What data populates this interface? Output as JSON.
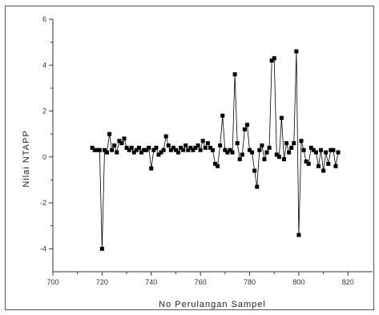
{
  "chart_data": {
    "type": "line",
    "title": "",
    "xlabel": "No Perulangan Sampel",
    "ylabel": "Nilai NTAPP",
    "xlim": [
      700,
      830
    ],
    "ylim": [
      -5,
      6
    ],
    "xticks": [
      700,
      720,
      740,
      760,
      780,
      800,
      820
    ],
    "yticks": [
      -4,
      -2,
      0,
      2,
      4,
      6
    ],
    "xtick_labels": [
      "700",
      "720",
      "740",
      "760",
      "780",
      "800",
      "820"
    ],
    "ytick_labels": [
      "-4",
      "-2",
      "0",
      "2",
      "4",
      "6"
    ],
    "grid": false,
    "legend": false,
    "colors": {
      "line": "#000000",
      "marker": "#000000",
      "axis": "#333333"
    },
    "series": [
      {
        "x": [
          716,
          717,
          718,
          719,
          720,
          721,
          722,
          723,
          724,
          725,
          726,
          727,
          728,
          729,
          730,
          731,
          732,
          733,
          734,
          735,
          736,
          737,
          738,
          739,
          740,
          741,
          742,
          743,
          744,
          745,
          746,
          747,
          748,
          749,
          750,
          751,
          752,
          753,
          754,
          755,
          756,
          757,
          758,
          759,
          760,
          761,
          762,
          763,
          764,
          765,
          766,
          767,
          768,
          769,
          770,
          771,
          772,
          773,
          774,
          775,
          776,
          777,
          778,
          779,
          780,
          781,
          782,
          783,
          784,
          785,
          786,
          787,
          788,
          789,
          790,
          791,
          792,
          793,
          794,
          795,
          796,
          797,
          798,
          799,
          800,
          801,
          802,
          803,
          804,
          805,
          806,
          807,
          808,
          809,
          810,
          811,
          812,
          813,
          814,
          815,
          816
        ],
        "values": [
          0.4,
          0.3,
          0.3,
          0.3,
          -4.0,
          0.3,
          0.2,
          1.0,
          0.3,
          0.5,
          0.2,
          0.7,
          0.6,
          0.8,
          0.4,
          0.3,
          0.4,
          0.2,
          0.3,
          0.4,
          0.2,
          0.3,
          0.3,
          0.4,
          -0.5,
          0.3,
          0.4,
          0.1,
          0.2,
          0.3,
          0.9,
          0.5,
          0.3,
          0.4,
          0.3,
          0.2,
          0.4,
          0.3,
          0.5,
          0.3,
          0.4,
          0.3,
          0.4,
          0.5,
          0.3,
          0.7,
          0.4,
          0.6,
          0.4,
          0.3,
          -0.3,
          -0.4,
          0.5,
          1.8,
          0.3,
          0.2,
          0.3,
          0.2,
          3.6,
          0.6,
          -0.1,
          0.1,
          1.2,
          1.4,
          0.3,
          0.2,
          -0.6,
          -1.3,
          0.3,
          0.5,
          -0.1,
          0.2,
          0.4,
          4.2,
          4.3,
          0.1,
          0.0,
          1.7,
          -0.1,
          0.6,
          0.2,
          0.4,
          0.6,
          4.6,
          -3.4,
          0.7,
          0.3,
          -0.2,
          -0.3,
          0.4,
          0.3,
          0.2,
          -0.4,
          0.3,
          -0.6,
          0.2,
          -0.3,
          0.3,
          0.3,
          -0.4,
          0.2
        ]
      }
    ]
  }
}
